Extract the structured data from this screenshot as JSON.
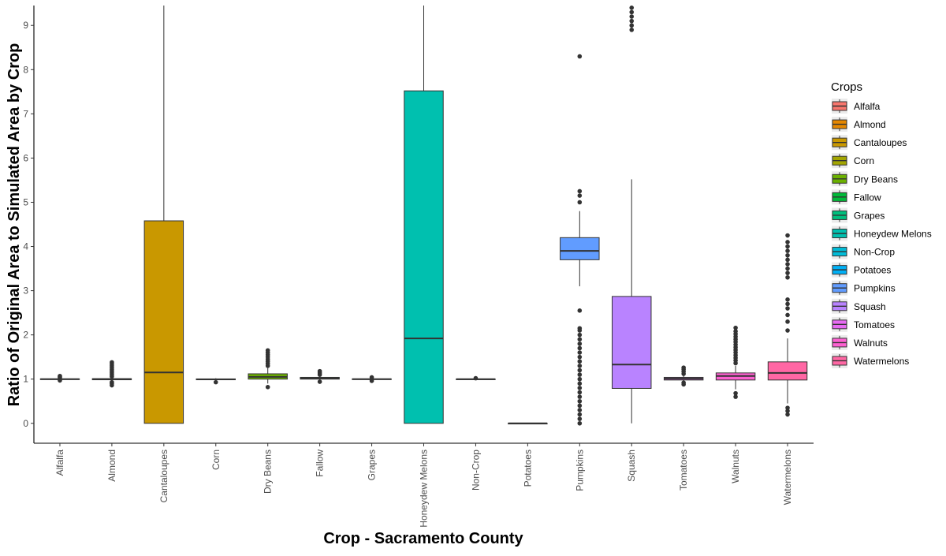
{
  "chart_data": {
    "type": "boxplot",
    "title": "",
    "xlabel": "Crop - Sacramento County",
    "ylabel": "Ratio of Original Area to Simulated Area by Crop",
    "ylim": [
      -0.45,
      9.45
    ],
    "yticks": [
      0,
      1,
      2,
      3,
      4,
      5,
      6,
      7,
      8,
      9
    ],
    "grid": false,
    "legend": {
      "title": "Crops",
      "position": "right",
      "entries": [
        {
          "label": "Alfalfa",
          "color": "#F8766D"
        },
        {
          "label": "Almond",
          "color": "#E58700"
        },
        {
          "label": "Cantaloupes",
          "color": "#C99800"
        },
        {
          "label": "Corn",
          "color": "#A3A500"
        },
        {
          "label": "Dry Beans",
          "color": "#6BB100"
        },
        {
          "label": "Fallow",
          "color": "#00BA38"
        },
        {
          "label": "Grapes",
          "color": "#00BF7D"
        },
        {
          "label": "Honeydew Melons",
          "color": "#00C0AF"
        },
        {
          "label": "Non-Crop",
          "color": "#00BCD8"
        },
        {
          "label": "Potatoes",
          "color": "#00B0F6"
        },
        {
          "label": "Pumpkins",
          "color": "#619CFF"
        },
        {
          "label": "Squash",
          "color": "#B983FF"
        },
        {
          "label": "Tomatoes",
          "color": "#E76BF3"
        },
        {
          "label": "Walnuts",
          "color": "#FD61D1"
        },
        {
          "label": "Watermelons",
          "color": "#FF67A4"
        }
      ]
    },
    "categories": [
      "Alfalfa",
      "Almond",
      "Cantaloupes",
      "Corn",
      "Dry Beans",
      "Fallow",
      "Grapes",
      "Honeydew Melons",
      "Non-Crop",
      "Potatoes",
      "Pumpkins",
      "Squash",
      "Tomatoes",
      "Walnuts",
      "Watermelons"
    ],
    "boxes": [
      {
        "name": "Alfalfa",
        "color": "#F8766D",
        "whisker_low": 0.99,
        "q1": 0.995,
        "median": 1.0,
        "q3": 1.005,
        "whisker_high": 1.01,
        "outliers": [
          0.97,
          1.03,
          1.05,
          1.07
        ]
      },
      {
        "name": "Almond",
        "color": "#E58700",
        "whisker_low": 0.96,
        "q1": 0.985,
        "median": 1.0,
        "q3": 1.01,
        "whisker_high": 1.03,
        "outliers": [
          0.86,
          0.9,
          0.93,
          1.06,
          1.1,
          1.14,
          1.18,
          1.22,
          1.26,
          1.3,
          1.34,
          1.38
        ]
      },
      {
        "name": "Cantaloupes",
        "color": "#C99800",
        "whisker_low": 0.0,
        "q1": 0.0,
        "median": 1.15,
        "q3": 4.58,
        "whisker_high": 9.45,
        "outliers": []
      },
      {
        "name": "Corn",
        "color": "#A3A500",
        "whisker_low": 0.97,
        "q1": 0.985,
        "median": 0.995,
        "q3": 1.005,
        "whisker_high": 1.02,
        "outliers": [
          0.93
        ]
      },
      {
        "name": "Dry Beans",
        "color": "#6BB100",
        "whisker_low": 0.9,
        "q1": 1.0,
        "median": 1.05,
        "q3": 1.12,
        "whisker_high": 1.25,
        "outliers": [
          0.82,
          1.3,
          1.35,
          1.4,
          1.45,
          1.5,
          1.55,
          1.6,
          1.65
        ]
      },
      {
        "name": "Fallow",
        "color": "#00BA38",
        "whisker_low": 0.96,
        "q1": 1.0,
        "median": 1.02,
        "q3": 1.04,
        "whisker_high": 1.08,
        "outliers": [
          0.94,
          1.1,
          1.14,
          1.18
        ]
      },
      {
        "name": "Grapes",
        "color": "#00BF7D",
        "whisker_low": 0.98,
        "q1": 0.995,
        "median": 1.0,
        "q3": 1.005,
        "whisker_high": 1.02,
        "outliers": [
          0.96,
          1.04
        ]
      },
      {
        "name": "Honeydew Melons",
        "color": "#00C0AF",
        "whisker_low": 0.0,
        "q1": 0.0,
        "median": 1.92,
        "q3": 7.52,
        "whisker_high": 9.45,
        "outliers": []
      },
      {
        "name": "Non-Crop",
        "color": "#00BCD8",
        "whisker_low": 0.995,
        "q1": 0.998,
        "median": 1.0,
        "q3": 1.002,
        "whisker_high": 1.005,
        "outliers": [
          1.02
        ]
      },
      {
        "name": "Potatoes",
        "color": "#00B0F6",
        "whisker_low": 0.0,
        "q1": 0.0,
        "median": 0.0,
        "q3": 0.0,
        "whisker_high": 0.0,
        "outliers": []
      },
      {
        "name": "Pumpkins",
        "color": "#619CFF",
        "whisker_low": 3.1,
        "q1": 3.7,
        "median": 3.9,
        "q3": 4.2,
        "whisker_high": 4.8,
        "outliers": [
          0.0,
          0.1,
          0.2,
          0.3,
          0.4,
          0.5,
          0.6,
          0.7,
          0.8,
          0.9,
          1.0,
          1.1,
          1.2,
          1.3,
          1.4,
          1.5,
          1.6,
          1.7,
          1.8,
          1.9,
          2.0,
          2.1,
          2.15,
          2.55,
          5.0,
          5.15,
          5.25,
          8.3
        ]
      },
      {
        "name": "Squash",
        "color": "#B983FF",
        "whisker_low": 0.0,
        "q1": 0.79,
        "median": 1.33,
        "q3": 2.87,
        "whisker_high": 5.52,
        "outliers": [
          8.9,
          9.0,
          9.1,
          9.2,
          9.3,
          9.4
        ]
      },
      {
        "name": "Tomatoes",
        "color": "#E76BF3",
        "whisker_low": 0.95,
        "q1": 0.98,
        "median": 1.01,
        "q3": 1.04,
        "whisker_high": 1.08,
        "outliers": [
          0.88,
          0.92,
          1.12,
          1.17,
          1.22,
          1.26
        ]
      },
      {
        "name": "Walnuts",
        "color": "#FD61D1",
        "whisker_low": 0.77,
        "q1": 0.98,
        "median": 1.07,
        "q3": 1.14,
        "whisker_high": 1.3,
        "outliers": [
          0.6,
          0.68,
          1.36,
          1.42,
          1.48,
          1.54,
          1.6,
          1.66,
          1.72,
          1.78,
          1.84,
          1.9,
          1.96,
          2.02,
          2.08,
          2.16
        ]
      },
      {
        "name": "Watermelons",
        "color": "#FF67A4",
        "whisker_low": 0.45,
        "q1": 0.98,
        "median": 1.14,
        "q3": 1.39,
        "whisker_high": 1.92,
        "outliers": [
          0.2,
          0.28,
          0.35,
          2.1,
          2.3,
          2.45,
          2.6,
          2.7,
          2.8,
          3.3,
          3.4,
          3.5,
          3.6,
          3.7,
          3.8,
          3.9,
          4.0,
          4.1,
          4.25
        ]
      }
    ]
  }
}
